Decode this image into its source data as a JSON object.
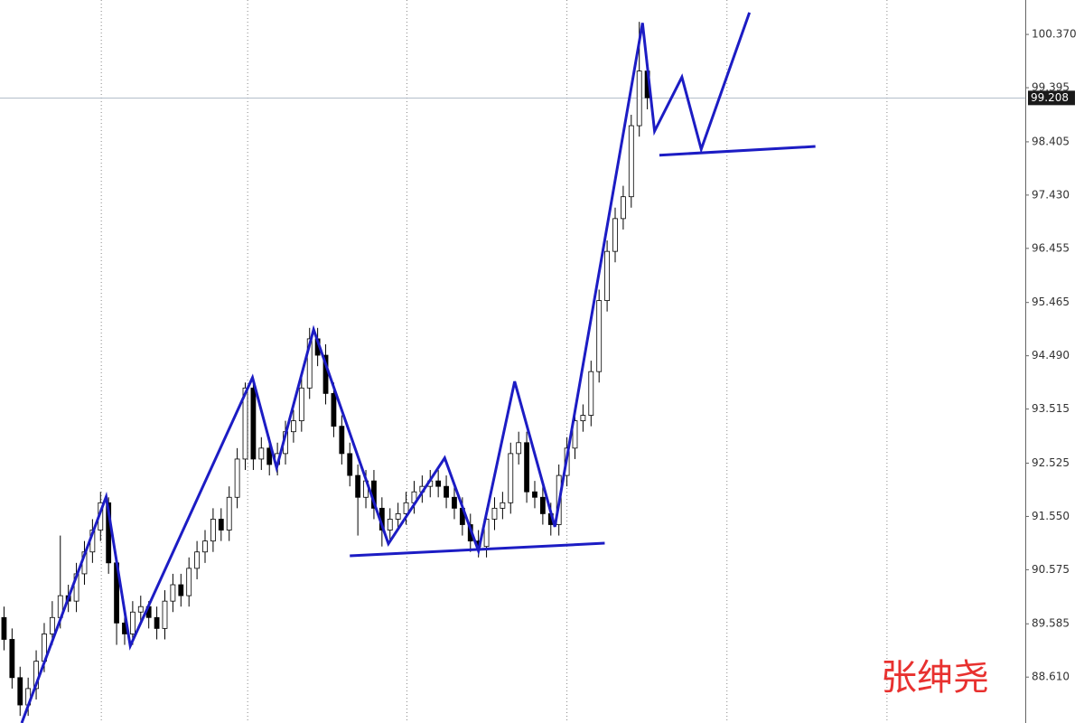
{
  "chart_data": {
    "type": "candlestick",
    "xlim": [
      -0.5,
      127
    ],
    "ylim": [
      87.77,
      101.0
    ],
    "yticks": [
      {
        "value": 100.37,
        "label": "100.370"
      },
      99.395,
      98.405,
      {
        "value": 97.43,
        "label": "97.430"
      },
      96.455,
      95.465,
      {
        "value": 94.49,
        "label": "94.490"
      },
      93.515,
      92.525,
      {
        "value": 91.55,
        "label": "91.550"
      },
      90.575,
      89.585,
      {
        "value": 88.61,
        "label": "88.610"
      }
    ],
    "xticks": [
      12.1,
      30.3,
      50.1,
      70,
      89.9,
      109.8
    ],
    "grid": true,
    "last_price": 99.208,
    "up_color": "#ffffff",
    "down_color": "#000000",
    "open": [
      89.7,
      89.3,
      88.6,
      88.1,
      88.4,
      88.9,
      89.4,
      89.7,
      90.1,
      90.0,
      90.5,
      90.9,
      91.3,
      91.8,
      90.7,
      89.6,
      89.4,
      89.8,
      89.9,
      89.7,
      89.5,
      90.0,
      90.3,
      90.1,
      90.6,
      90.9,
      91.1,
      91.5,
      91.3,
      91.9,
      92.6,
      93.9,
      92.6,
      92.8,
      92.5,
      92.7,
      93.1,
      93.3,
      93.9,
      94.8,
      94.5,
      93.8,
      93.2,
      92.7,
      92.3,
      91.9,
      92.2,
      91.7,
      91.3,
      91.5,
      91.6,
      91.8,
      92.0,
      92.1,
      92.2,
      92.1,
      91.9,
      91.7,
      91.4,
      91.1,
      91.0,
      91.5,
      91.7,
      91.8,
      92.7,
      92.9,
      92.0,
      91.9,
      91.6,
      91.4,
      92.3,
      92.8,
      93.3,
      93.4,
      94.2,
      95.5,
      96.4,
      97.0,
      97.4,
      98.7,
      99.7
    ],
    "high": [
      89.9,
      89.5,
      88.8,
      88.6,
      89.1,
      89.6,
      90.0,
      91.2,
      90.3,
      90.7,
      91.1,
      91.5,
      92.0,
      91.9,
      90.8,
      89.9,
      90.0,
      90.1,
      90.0,
      89.9,
      90.2,
      90.5,
      90.5,
      90.8,
      91.1,
      91.3,
      91.7,
      91.7,
      92.1,
      92.8,
      94.0,
      94.0,
      93.0,
      93.0,
      92.9,
      93.3,
      93.5,
      94.1,
      95.0,
      95.0,
      94.7,
      94.0,
      93.4,
      92.9,
      92.5,
      92.4,
      92.4,
      91.9,
      91.7,
      91.8,
      92.0,
      92.2,
      92.3,
      92.4,
      92.4,
      92.3,
      92.1,
      91.9,
      91.6,
      91.3,
      91.7,
      91.9,
      92.0,
      92.9,
      93.1,
      93.1,
      92.2,
      92.1,
      91.8,
      92.5,
      93.0,
      93.5,
      93.6,
      94.4,
      95.7,
      96.6,
      97.2,
      97.6,
      98.9,
      100.6,
      99.9
    ],
    "low": [
      89.1,
      88.4,
      87.9,
      87.9,
      88.2,
      88.7,
      89.2,
      89.5,
      89.8,
      89.8,
      90.3,
      90.7,
      91.1,
      90.5,
      89.2,
      89.2,
      89.2,
      89.6,
      89.5,
      89.3,
      89.3,
      89.8,
      89.9,
      89.9,
      90.4,
      90.7,
      90.9,
      91.1,
      91.1,
      91.7,
      92.4,
      92.4,
      92.4,
      92.3,
      92.3,
      92.5,
      92.9,
      93.1,
      93.7,
      94.3,
      93.6,
      93.0,
      92.5,
      92.1,
      91.2,
      91.7,
      91.5,
      91.0,
      91.1,
      91.3,
      91.4,
      91.6,
      91.8,
      91.9,
      91.9,
      91.7,
      91.5,
      91.2,
      90.9,
      90.8,
      90.8,
      91.3,
      91.5,
      91.6,
      92.5,
      91.8,
      91.7,
      91.4,
      91.2,
      91.2,
      92.1,
      92.6,
      93.1,
      93.2,
      94.0,
      95.3,
      96.2,
      96.8,
      97.2,
      98.5,
      99.0
    ],
    "close": [
      89.3,
      88.6,
      88.1,
      88.4,
      88.9,
      89.4,
      89.7,
      90.1,
      90.0,
      90.5,
      90.9,
      91.3,
      91.8,
      90.7,
      89.6,
      89.4,
      89.8,
      89.9,
      89.7,
      89.5,
      90.0,
      90.3,
      90.1,
      90.6,
      90.9,
      91.1,
      91.5,
      91.3,
      91.9,
      92.6,
      93.9,
      92.6,
      92.8,
      92.5,
      92.7,
      93.1,
      93.3,
      93.9,
      94.8,
      94.5,
      93.8,
      93.2,
      92.7,
      92.3,
      91.9,
      92.2,
      91.7,
      91.3,
      91.5,
      91.6,
      91.8,
      92.0,
      92.1,
      92.2,
      92.1,
      91.9,
      91.7,
      91.4,
      91.1,
      91.0,
      91.5,
      91.7,
      91.8,
      92.7,
      92.9,
      92.0,
      91.9,
      91.6,
      91.4,
      92.3,
      92.8,
      93.3,
      93.4,
      94.2,
      95.5,
      96.4,
      97.0,
      97.4,
      98.7,
      99.7,
      99.21
    ],
    "lines": [
      {
        "color": "#1c1cc4",
        "x": [
          2.2,
          12.7,
          15.7,
          30.9,
          33.9,
          38.5,
          47.8,
          54.8,
          59,
          63.5,
          68.5,
          79.4,
          80.9,
          84.3,
          86.7,
          92.7
        ],
        "y": [
          87.77,
          91.91,
          89.18,
          94.09,
          92.44,
          94.97,
          91.05,
          92.62,
          90.92,
          94.02,
          91.36,
          100.58,
          98.6,
          99.59,
          98.27,
          100.77
        ]
      },
      {
        "color": "#1c1cc4",
        "x": [
          43.0,
          74.7
        ],
        "y": [
          90.83,
          91.06
        ]
      },
      {
        "color": "#1c1cc4",
        "x": [
          81.5,
          100.9
        ],
        "y": [
          98.16,
          98.32
        ]
      }
    ],
    "watermark": "张绅尧"
  }
}
